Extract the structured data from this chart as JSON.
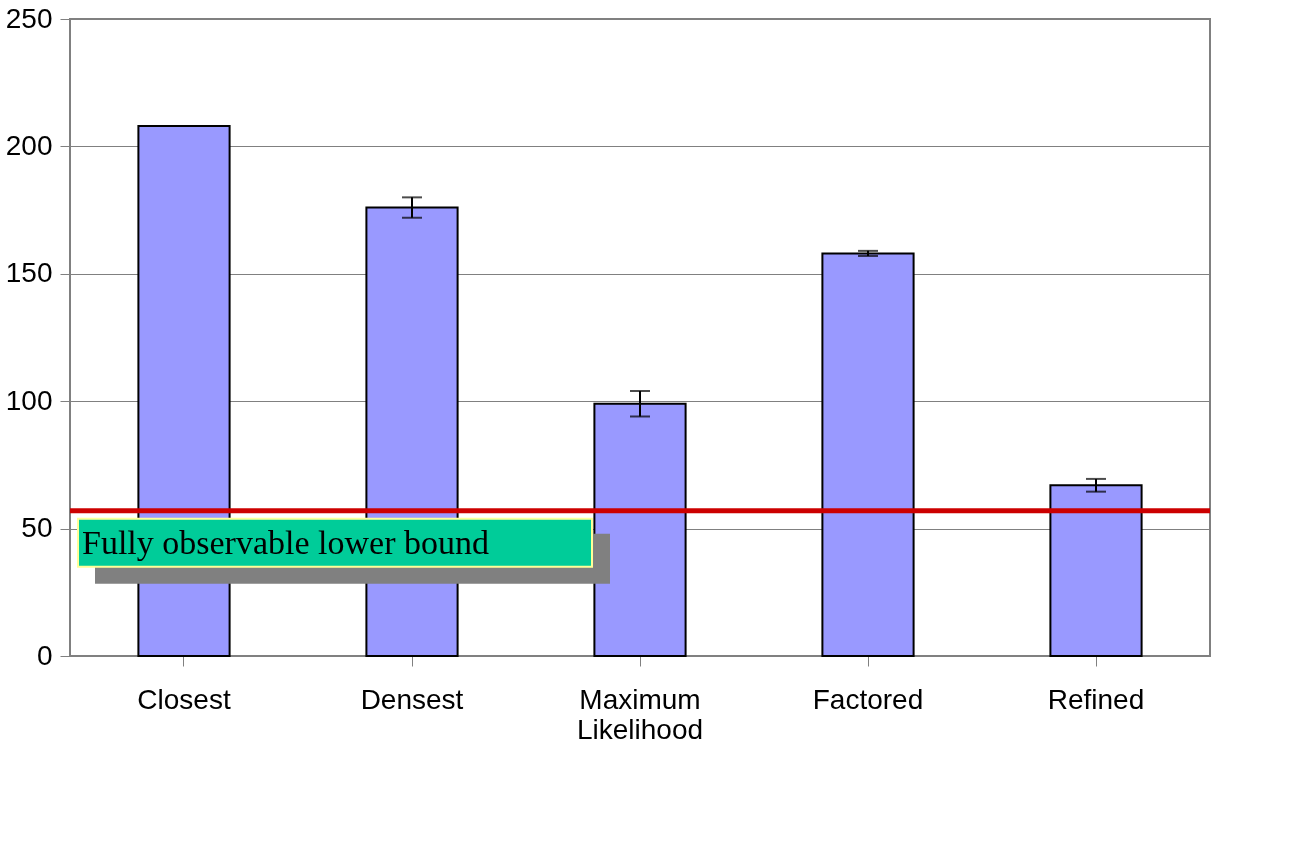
{
  "chart_data": {
    "type": "bar",
    "categories": [
      "Closest",
      "Densest",
      "Maximum Likelihood",
      "Factored",
      "Refined"
    ],
    "series": [
      {
        "color": "#9999ff",
        "values": [
          208,
          176,
          99,
          158,
          67
        ],
        "errors": [
          null,
          4,
          5,
          1,
          2.5
        ]
      }
    ],
    "ylim": [
      0,
      250
    ],
    "yticks": [
      0,
      50,
      100,
      150,
      200,
      250
    ],
    "grid": "y",
    "ref_lines": [
      {
        "axis": "y",
        "value": 57,
        "label": "Fully observable lower bound",
        "color": "#cc0000"
      }
    ]
  }
}
